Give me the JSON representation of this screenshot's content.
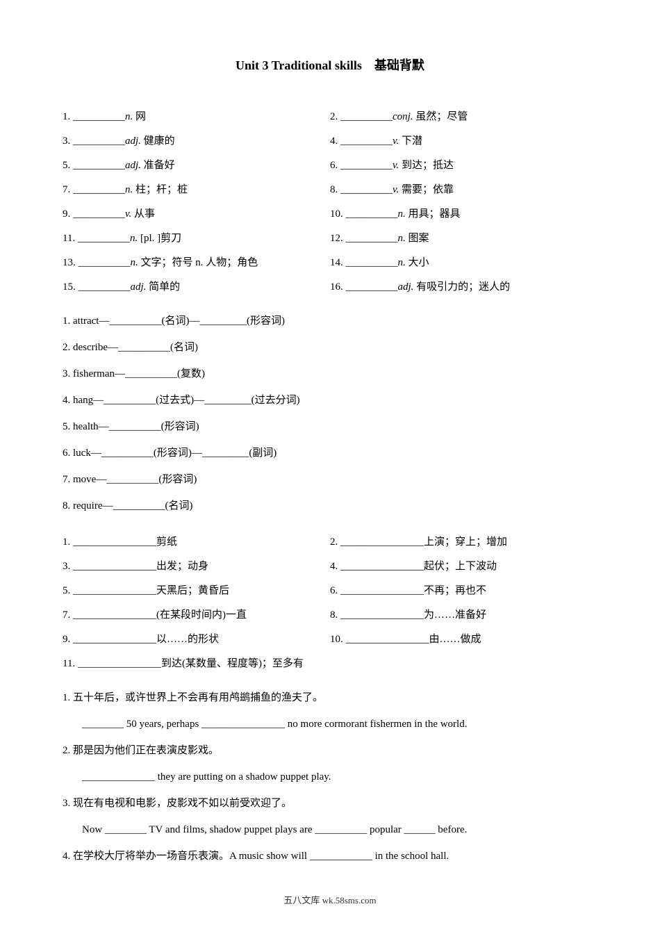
{
  "title": "Unit 3 Traditional skills　基础背默",
  "vocab": [
    {
      "num": "1.",
      "blank": "__________",
      "pos": "n.",
      "def": "网",
      "num2": "2.",
      "blank2": "__________",
      "pos2": "conj.",
      "def2": "虽然；尽管"
    },
    {
      "num": "3.",
      "blank": "__________",
      "pos": "adj.",
      "def": "健康的",
      "num2": "4.",
      "blank2": "__________",
      "pos2": "v.",
      "def2": "下潜"
    },
    {
      "num": "5.",
      "blank": "__________",
      "pos": "adj.",
      "def": "准备好",
      "num2": "6.",
      "blank2": "__________",
      "pos2": "v.",
      "def2": "到达；抵达"
    },
    {
      "num": "7.",
      "blank": "__________",
      "pos": "n.",
      "def": "柱；杆；桩",
      "num2": "8.",
      "blank2": "__________",
      "pos2": "v.",
      "def2": "需要；依靠"
    },
    {
      "num": "9.",
      "blank": "__________",
      "pos": "v.",
      "def": "从事",
      "num2": "10.",
      "blank2": "__________",
      "pos2": "n.",
      "def2": "用具；器具"
    },
    {
      "num": "11.",
      "blank": "__________",
      "pos": "n.",
      "def": "[pl. ]剪刀",
      "num2": "12.",
      "blank2": "__________",
      "pos2": "n.",
      "def2": "图案"
    },
    {
      "num": "13.",
      "blank": "__________",
      "pos": "n.",
      "def": "文字；符号 n. 人物；角色",
      "num2": "14.",
      "blank2": "__________",
      "pos2": "n.",
      "def2": "大小"
    },
    {
      "num": "15.",
      "blank": "__________",
      "pos": "adj.",
      "def": "简单的",
      "num2": "16.",
      "blank2": "__________",
      "pos2": "adj.",
      "def2": "有吸引力的；迷人的"
    }
  ],
  "wordforms": [
    "1. attract—__________(名词)—_________(形容词)",
    "2. describe—__________(名词)",
    "3. fisherman—__________(复数)",
    "4. hang—__________(过去式)—_________(过去分词)",
    "5. health—__________(形容词)",
    "6. luck—__________(形容词)—_________(副词)",
    "7. move—__________(形容词)",
    "8. require—__________(名词)"
  ],
  "phrases": [
    {
      "num": "1.",
      "blank": "________________",
      "def": "剪纸",
      "num2": "2.",
      "blank2": "________________",
      "def2": "上演；穿上；增加"
    },
    {
      "num": "3.",
      "blank": "________________",
      "def": "出发；动身",
      "num2": "4.",
      "blank2": "________________",
      "def2": "起伏；上下波动"
    },
    {
      "num": "5.",
      "blank": "________________",
      "def": "天黑后；黄昏后",
      "num2": "6.",
      "blank2": "________________",
      "def2": "不再；再也不"
    },
    {
      "num": "7.",
      "blank": "________________",
      "def": "(在某段时间内)一直",
      "num2": "8.",
      "blank2": "________________",
      "def2": "为……准备好"
    },
    {
      "num": "9.",
      "blank": "________________",
      "def": "以……的形状",
      "num2": "10.",
      "blank2": "________________",
      "def2": "由……做成"
    },
    {
      "num": "11.",
      "blank": "________________",
      "def": "到达(某数量、程度等)；至多有",
      "num2": "",
      "blank2": "",
      "def2": ""
    }
  ],
  "sentences": {
    "s1": "1. 五十年后，或许世界上不会再有用鸬鹚捕鱼的渔夫了。",
    "s1b": "________ 50 years, perhaps ________________ no more cormorant fishermen in the world.",
    "s2": "2. 那是因为他们正在表演皮影戏。",
    "s2b": "______________ they are putting on a shadow puppet play.",
    "s3": "3. 现在有电视和电影，皮影戏不如以前受欢迎了。",
    "s3b": "Now ________ TV and films, shadow puppet plays are __________ popular ______ before.",
    "s4": "4. 在学校大厅将举办一场音乐表演。A music show will ____________ in the school hall."
  },
  "footer": "五八文库 wk.58sms.com"
}
